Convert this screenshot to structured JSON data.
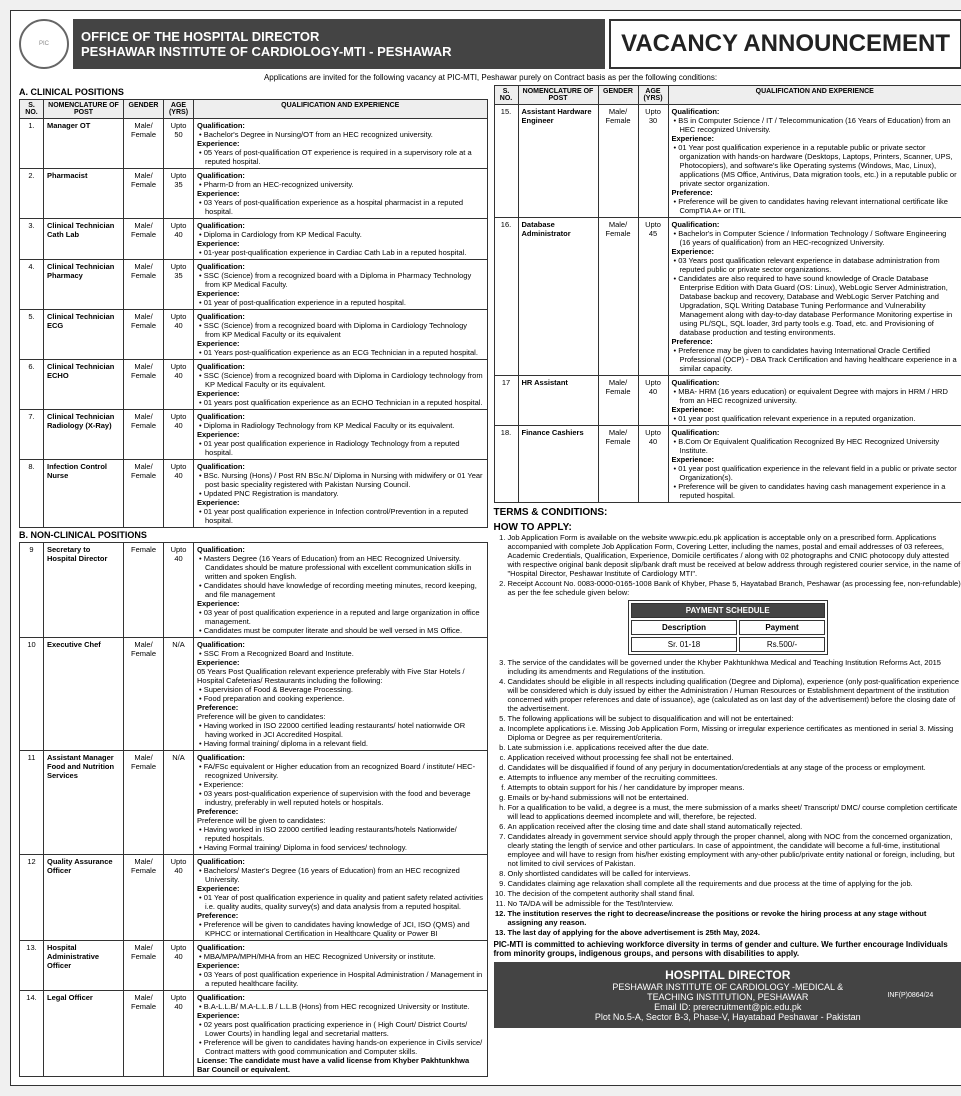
{
  "header": {
    "office": "OFFICE OF THE HOSPITAL DIRECTOR",
    "institute": "PESHAWAR INSTITUTE OF CARDIOLOGY-MTI - PESHAWAR",
    "vacancy": "VACANCY ANNOUNCEMENT",
    "intro": "Applications are invited for the following vacancy at PIC-MTI, Peshawar purely on Contract basis as per the following conditions:"
  },
  "sections": {
    "a_title": "A. CLINICAL POSITIONS",
    "b_title": "B. NON-CLINICAL POSITIONS"
  },
  "cols": {
    "sno": "S. NO.",
    "post": "NOMENCLATURE OF POST",
    "gender": "GENDER",
    "age": "AGE (YRS)",
    "qe": "QUALIFICATION AND EXPERIENCE"
  },
  "clinical": [
    {
      "sno": "1.",
      "post": "Manager OT",
      "gender": "Male/ Female",
      "age": "Upto 50",
      "qual": "Qualification:\n• Bachelor's Degree in Nursing/OT from an HEC recognized university.\nExperience:\n• 05 Years of post-qualification OT experience is required in a supervisory role at a reputed hospital."
    },
    {
      "sno": "2.",
      "post": "Pharmacist",
      "gender": "Male/ Female",
      "age": "Upto 35",
      "qual": "Qualification:\n• Pharm-D from an HEC-recognized university.\nExperience:\n• 03 Years of post-qualification experience as a hospital pharmacist in a reputed hospital."
    },
    {
      "sno": "3.",
      "post": "Clinical Technician Cath Lab",
      "gender": "Male/ Female",
      "age": "Upto 40",
      "qual": "Qualification:\n• Diploma in Cardiology from KP Medical Faculty.\nExperience:\n• 01-year post-qualification experience in Cardiac Cath Lab in a reputed hospital."
    },
    {
      "sno": "4.",
      "post": "Clinical Technician Pharmacy",
      "gender": "Male/ Female",
      "age": "Upto 35",
      "qual": "Qualification:\n• SSC (Science) from a recognized board with a Diploma in Pharmacy Technology from KP Medical Faculty.\nExperience:\n• 01 year of post-qualification experience in a reputed hospital."
    },
    {
      "sno": "5.",
      "post": "Clinical Technician ECG",
      "gender": "Male/ Female",
      "age": "Upto 40",
      "qual": "Qualification:\n• SSC (Science) from a recognized board with Diploma in Cardiology Technology from KP Medical Faculty or its equivalent\nExperience:\n• 01 Years post-qualification experience as an ECG Technician in a reputed hospital."
    },
    {
      "sno": "6.",
      "post": "Clinical Technician ECHO",
      "gender": "Male/ Female",
      "age": "Upto 40",
      "qual": "Qualification:\n• SSC (Science) from a recognized board with Diploma in Cardiology technology from KP Medical Faculty or its equivalent.\nExperience:\n• 01 years post qualification experience as an ECHO Technician in a reputed hospital."
    },
    {
      "sno": "7.",
      "post": "Clinical Technician Radiology (X-Ray)",
      "gender": "Male/ Female",
      "age": "Upto 40",
      "qual": "Qualification:\n• Diploma in Radiology Technology from KP Medical Faculty or its equivalent.\nExperience:\n• 01 year post qualification experience in Radiology Technology from a reputed hospital."
    },
    {
      "sno": "8.",
      "post": "Infection Control Nurse",
      "gender": "Male/ Female",
      "age": "Upto 40",
      "qual": "Qualification:\n• BSc. Nursing (Hons) / Post RN BSc.N/ Diploma in Nursing with midwifery or 01 Year post basic speciality registered with Pakistan Nursing Council.\n• Updated PNC Registration is mandatory.\nExperience:\n• 01 year post qualification experience in Infection control/Prevention in a reputed hospital."
    }
  ],
  "nonclinical_left": [
    {
      "sno": "9",
      "post": "Secretary to Hospital Director",
      "gender": "Female",
      "age": "Upto 40",
      "qual": "Qualification:\n• Masters Degree (16 Years of Education) from an HEC Recognized University. Candidates should be mature professional with excellent communication skills in written and spoken English.\n• Candidates should have knowledge of recording meeting minutes, record keeping, and file management\nExperience:\n• 03 year of post qualification experience in a reputed and large organization in office management.\n• Candidates must be computer literate and should be well versed in MS Office."
    },
    {
      "sno": "10",
      "post": "Executive Chef",
      "gender": "Male/ Female",
      "age": "N/A",
      "qual": "Qualification:\n• SSC From a Recognized Board and Institute.\nExperience:\n05 Years Post Qualification relevant experience preferably with Five Star Hotels / Hospital Cafeterias/ Restaurants including the following:\n• Supervision of Food & Beverage Processing.\n• Food preparation and cooking experience.\nPreference:\nPreference will be given to candidates:\n• Having worked in ISO 22000 certified leading restaurants/ hotel nationwide OR having worked in JCI Accredited Hospital.\n• Having formal training/ diploma in a relevant field."
    },
    {
      "sno": "11",
      "post": "Assistant Manager Food and Nutrition Services",
      "gender": "Male/ Female",
      "age": "N/A",
      "qual": "Qualification:\n• FA/FSc equivalent or Higher education from an recognized Board / institute/ HEC-recognized University.\n• Experience:\n• 03 years post-qualification experience of supervision with the food and beverage industry, preferably in well reputed hotels or hospitals.\nPreference:\nPreference will be given to candidates:\n• Having worked in ISO 22000 certified leading restaurants/hotels Nationwide/ reputed hospitals.\n• Having Formal training/ Diploma in food services/ technology."
    },
    {
      "sno": "12",
      "post": "Quality Assurance Officer",
      "gender": "Male/ Female",
      "age": "Upto 40",
      "qual": "Qualification:\n• Bachelors/ Master's Degree (16 years of Education) from an HEC recognized University.\nExperience:\n• 01 Year of post qualification experience in quality and patient safety related activities i.e. quality audits, quality survey(s) and data analysis from a reputed hospital.\nPreference:\n• Preference will be given to candidates having knowledge of JCI, ISO (QMS) and KPHCC or international Certification in Healthcare Quality or Power BI"
    },
    {
      "sno": "13.",
      "post": "Hospital Administrative Officer",
      "gender": "Male/ Female",
      "age": "Upto 40",
      "qual": "Qualification:\n• MBA/MPA/MPH/MHA from an HEC Recognized University or institute.\nExperience:\n• 03 Years of post qualification experience in Hospital Administration / Management in a reputed healthcare facility."
    },
    {
      "sno": "14.",
      "post": "Legal Officer",
      "gender": "Male/ Female",
      "age": "Upto 40",
      "qual": "Qualification:\n• B.A-L.L.B/ M.A-L.L.B / L.L.B (Hons) from HEC recognized University or Institute.\nExperience:\n• 02 years post qualification practicing experience in ( High Court/ District Courts/ Lower Courts) in handling legal and secretarial matters.\n• Preference will be given to candidates having hands-on experience in Civils service/ Contract matters with good communication and Computer skills.\nLicense: The candidate must have a valid license from Khyber Pakhtunkhwa Bar Council or equivalent."
    }
  ],
  "nonclinical_right": [
    {
      "sno": "15.",
      "post": "Assistant Hardware Engineer",
      "gender": "Male/ Female",
      "age": "Upto 30",
      "qual": "Qualification:\n• BS in Computer Science / IT / Telecommunication (16 Years of Education) from an HEC recognized University.\nExperience:\n• 01 Year post qualification experience in a reputable public or private sector organization with hands-on hardware (Desktops, Laptops, Printers, Scanner, UPS, Photocopiers), and software's like Operating systems (Windows, Mac, Linux), applications (MS Office, Antivirus, Data migration tools, etc.) in a reputable public or private sector organization.\nPreference:\n• Preference will be given to candidates having relevant international certificate like CompTIA A+ or ITIL"
    },
    {
      "sno": "16.",
      "post": "Database Administrator",
      "gender": "Male/ Female",
      "age": "Upto 45",
      "qual": "Qualification:\n• Bachelor's in Computer Science / Information Technology / Software Engineering (16 years of qualification) from an HEC-recognized University.\nExperience:\n• 03 Years post qualification relevant experience in database administration from reputed public or private sector organizations.\n• Candidates are also required to have sound knowledge of Oracle Database Enterprise Edition with Data Guard (OS: Linux), WebLogic Server Administration, Database backup and recovery, Database and WebLogic Server Patching and Upgradation, SQL Writing Database Tuning Performance and Vulnerability Management along with day-to-day database Performance Monitoring expertise in using PL/SQL, SQL loader, 3rd party tools e.g. Toad, etc. and Provisioning of database production and testing environments.\nPreference:\n• Preference may be given to candidates having International Oracle Certified Professional (OCP) - DBA Track Certification and having healthcare experience in a similar capacity."
    },
    {
      "sno": "17",
      "post": "HR Assistant",
      "gender": "Male/ Female",
      "age": "Upto 40",
      "qual": "Qualification:\n• MBA- HRM (16 years education) or equivalent Degree with majors in HRM / HRD from an HEC recognized university.\nExperience:\n• 01 year post qualification relevant experience in a reputed organization."
    },
    {
      "sno": "18.",
      "post": "Finance Cashiers",
      "gender": "Male/ Female",
      "age": "Upto 40",
      "qual": "Qualification:\n• B.Com Or Equivalent Qualification Recognized By HEC Recognized University Institute.\nExperience:\n• 01 year post qualification experience in the relevant field in a public or private sector Organization(s).\n• Preference will be given to candidates having cash management experience in a reputed hospital."
    }
  ],
  "terms_title": "TERMS & CONDITIONS:",
  "howto_title": "HOW TO APPLY:",
  "terms": [
    "Job Application Form is available on the website www.pic.edu.pk application is acceptable only on a prescribed form. Applications accompanied with complete Job Application Form, Covering Letter, including the names, postal and email addresses of 03 referees, Academic Credentials, Qualification, Experience, Domicile certificates / along with 02 photographs and CNIC photocopy duly attested with respective original bank deposit slip/bank draft must be received at below address through registered courier service, in the name of \"Hospital Director, Peshawar Institute of Cardiology MTI\".",
    "Receipt Account No. 0083-0000-0165-1008 Bank of Khyber, Phase 5, Hayatabad Branch, Peshawar (as processing fee, non-refundable) as per the fee schedule given below:",
    "The service of the candidates will be governed under the Khyber Pakhtunkhwa Medical and Teaching Institution Reforms Act, 2015 including its amendments and Regulations of the institution.",
    "Candidates should be eligible in all respects including qualification (Degree and Diploma), experience (only post-qualification experience will be considered which is duly issued by either the Administration / Human Resources or Establishment department of the institution concerned with proper references and date of issuance), age (calculated as on last day of the advertisement) before the closing date of the advertisement.",
    "The following applications will be subject to disqualification and will not be entertained:"
  ],
  "subterms": [
    "Incomplete applications i.e. Missing Job Application Form, Missing or irregular experience certificates as mentioned in serial 3. Missing Diploma or Degree as per requirement/criteria.",
    "Late submission i.e. applications received after the due date.",
    "Application received without processing fee shall not be entertained.",
    "Candidates will be disqualified if found of any perjury in documentation/credentials at any stage of the process or employment.",
    "Attempts to influence any member of the recruiting committees.",
    "Attempts to obtain support for his / her candidature by improper means.",
    "Emails or by-hand submissions will not be entertained.",
    "For a qualification to be valid, a degree is a must, the mere submission of a marks sheet/ Transcript/ DMC/ course completion certificate will lead to applications deemed incomplete and will, therefore, be rejected."
  ],
  "terms2": [
    "An application received after the closing time and date shall stand automatically rejected.",
    "Candidates already in government service should apply through the proper channel, along with NOC from the concerned organization, clearly stating the length of service and other particulars. In case of appointment, the candidate will become a full-time, institutional employee and will have to resign from his/her existing employment with any-other public/private entity national or foreign, including, but not limited to civil services of Pakistan.",
    "Only shortlisted candidates will be called for interviews.",
    "Candidates claiming age relaxation shall complete all the requirements and due process at the time of applying for the job.",
    "The decision of the competent authority shall stand final.",
    "No TA/DA will be admissible for the Test/Interview.",
    "The institution reserves the right to decrease/increase the positions or revoke the hiring process at any stage without assigning any reason.",
    "The last day of applying for the above advertisement is 25th May, 2024."
  ],
  "pay": {
    "title": "PAYMENT SCHEDULE",
    "h1": "Description",
    "h2": "Payment",
    "r1": "Sr. 01-18",
    "r2": "Rs.500/-"
  },
  "diversity": "PIC-MTI is committed to achieving workforce diversity in terms of gender and culture. We further encourage Individuals from minority groups, indigenous groups, and persons with disabilities to apply.",
  "footer": {
    "title": "HOSPITAL DIRECTOR",
    "line1": "PESHAWAR INSTITUTE OF CARDIOLOGY -MEDICAL & TEACHING INSTITUTION, PESHAWAR",
    "email": "Email ID: prerecruitment@pic.edu.pk",
    "addr": "Plot No.5-A, Sector B-3, Phase-V, Hayatabad Peshawar - Pakistan",
    "inf": "INF(P)0864/24"
  }
}
